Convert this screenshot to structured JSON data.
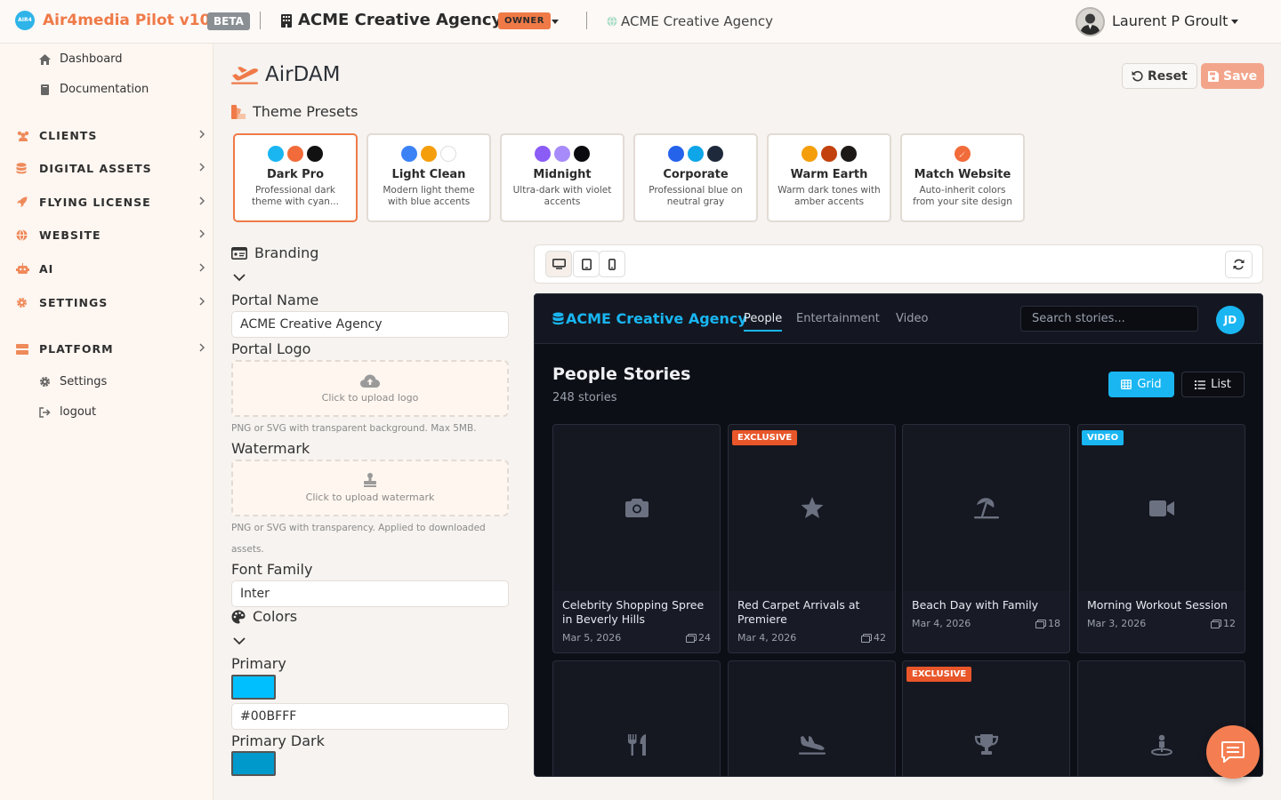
{
  "app": {
    "logo_text": "AIR4",
    "brand": "Air4media Pilot v10",
    "beta_label": "BETA",
    "org_name": "ACME Creative Agency",
    "role_badge": "OWNER",
    "site_name": "ACME Creative Agency",
    "user_name": "Laurent P Groult"
  },
  "sidebar": {
    "dashboard": "Dashboard",
    "documentation": "Documentation",
    "sections": [
      "CLIENTS",
      "DIGITAL ASSETS",
      "FLYING LICENSE",
      "WEBSITE",
      "AI",
      "SETTINGS",
      "PLATFORM"
    ],
    "platform_settings": "Settings",
    "logout": "logout"
  },
  "page": {
    "title": "AirDAM",
    "reset_label": "Reset",
    "save_label": "Save",
    "theme_presets_heading": "Theme Presets",
    "presets": [
      {
        "name": "Dark Pro",
        "desc": "Professional dark theme with cyan...",
        "colors": [
          "#19b6f2",
          "#f26b3a",
          "#111111"
        ]
      },
      {
        "name": "Light Clean",
        "desc": "Modern light theme with blue accents",
        "colors": [
          "#3b82f6",
          "#f59e0b",
          "#ffffff"
        ]
      },
      {
        "name": "Midnight",
        "desc": "Ultra-dark with violet accents",
        "colors": [
          "#8b5cf6",
          "#a78bfa",
          "#0b0b0f"
        ]
      },
      {
        "name": "Corporate",
        "desc": "Professional blue on neutral gray",
        "colors": [
          "#2563eb",
          "#0ea5e9",
          "#1e293b"
        ]
      },
      {
        "name": "Warm Earth",
        "desc": "Warm dark tones with amber accents",
        "colors": [
          "#f59e0b",
          "#c2410c",
          "#1c1917"
        ]
      },
      {
        "name": "Match Website",
        "desc": "Auto-inherit colors from your site design",
        "colors": [
          "#f26b3a"
        ]
      }
    ]
  },
  "branding": {
    "heading": "Branding",
    "portal_name_label": "Portal Name",
    "portal_name_value": "ACME Creative Agency",
    "portal_logo_label": "Portal Logo",
    "logo_upload_text": "Click to upload logo",
    "logo_hint": "PNG or SVG with transparent background. Max 5MB.",
    "watermark_label": "Watermark",
    "watermark_upload_text": "Click to upload watermark",
    "watermark_hint": "PNG or SVG with transparency. Applied to downloaded assets.",
    "font_family_label": "Font Family",
    "font_family_value": "Inter"
  },
  "colors": {
    "heading": "Colors",
    "primary_label": "Primary",
    "primary_value": "#00BFFF",
    "primary_dark_label": "Primary Dark",
    "primary_dark_value": "#0099CC"
  },
  "preview": {
    "brand": "ACME Creative Agency",
    "nav": [
      "People",
      "Entertainment",
      "Video"
    ],
    "search_placeholder": "Search stories...",
    "avatar_initials": "JD",
    "section_title": "People Stories",
    "story_count": "248 stories",
    "grid_label": "Grid",
    "list_label": "List",
    "cards": [
      {
        "title": "Celebrity Shopping Spree in Beverly Hills",
        "date": "Mar 5, 2026",
        "count": "24",
        "badge": "",
        "icon": "camera-icon"
      },
      {
        "title": "Red Carpet Arrivals at Premiere",
        "date": "Mar 4, 2026",
        "count": "42",
        "badge": "EXCLUSIVE",
        "icon": "star-icon"
      },
      {
        "title": "Beach Day with Family",
        "date": "Mar 4, 2026",
        "count": "18",
        "badge": "",
        "icon": "beach-umbrella-icon"
      },
      {
        "title": "Morning Workout Session",
        "date": "Mar 3, 2026",
        "count": "12",
        "badge": "VIDEO",
        "icon": "video-camera-icon"
      },
      {
        "title": "",
        "date": "",
        "count": "",
        "badge": "",
        "icon": "utensils-icon"
      },
      {
        "title": "",
        "date": "",
        "count": "",
        "badge": "",
        "icon": "plane-arrival-icon"
      },
      {
        "title": "",
        "date": "",
        "count": "",
        "badge": "EXCLUSIVE",
        "icon": "trophy-icon"
      },
      {
        "title": "",
        "date": "",
        "count": "",
        "badge": "",
        "icon": "person-pin-icon"
      }
    ]
  },
  "theme": {
    "accent": "#ef7a48",
    "preview_primary": "#19b6f2",
    "badge_exclusive": "#e8562a",
    "badge_video": "#19b6f2"
  }
}
